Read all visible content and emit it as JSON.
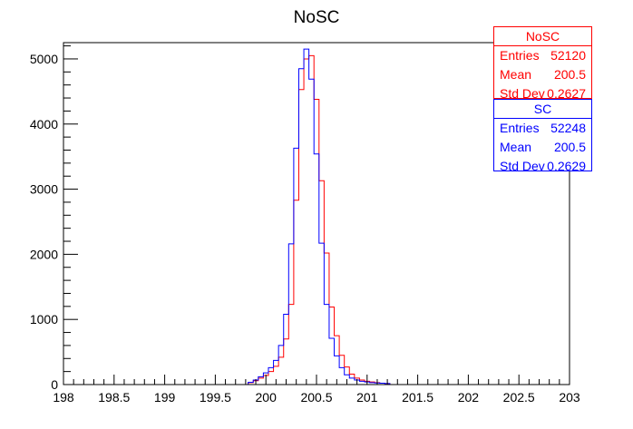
{
  "chart_data": {
    "type": "histogram",
    "title": "NoSC",
    "xlabel": "",
    "ylabel": "",
    "xlim": [
      198,
      203
    ],
    "ylim": [
      0,
      5250
    ],
    "bin_width": 0.05,
    "x_ticks": [
      "198",
      "198.5",
      "199",
      "199.5",
      "200",
      "200.5",
      "201",
      "201.5",
      "202",
      "202.5",
      "203"
    ],
    "y_ticks": [
      "0",
      "1000",
      "2000",
      "3000",
      "4000",
      "5000"
    ],
    "colors": {
      "NoSC": "#ff0000",
      "SC": "#0000ff"
    },
    "series": [
      {
        "name": "NoSC",
        "x": [
          199.85,
          199.9,
          199.95,
          200.0,
          200.05,
          200.1,
          200.15,
          200.2,
          200.25,
          200.3,
          200.35,
          200.4,
          200.45,
          200.5,
          200.55,
          200.6,
          200.65,
          200.7,
          200.75,
          200.8,
          200.85,
          200.9,
          200.95,
          201.0,
          201.05,
          201.1,
          201.15,
          201.2
        ],
        "values": [
          30,
          60,
          100,
          140,
          200,
          280,
          420,
          700,
          1230,
          2830,
          4530,
          5000,
          5050,
          4380,
          3130,
          2020,
          1190,
          750,
          450,
          270,
          160,
          100,
          70,
          50,
          40,
          30,
          20,
          15
        ]
      },
      {
        "name": "SC",
        "x": [
          199.85,
          199.9,
          199.95,
          200.0,
          200.05,
          200.1,
          200.15,
          200.2,
          200.25,
          200.3,
          200.35,
          200.4,
          200.45,
          200.5,
          200.55,
          200.6,
          200.65,
          200.7,
          200.75,
          200.8,
          200.85,
          200.9,
          200.95,
          201.0,
          201.05,
          201.1,
          201.15,
          201.2
        ],
        "values": [
          35,
          70,
          120,
          180,
          260,
          370,
          600,
          1080,
          2160,
          3630,
          4850,
          5150,
          4690,
          3540,
          2170,
          1230,
          710,
          440,
          260,
          150,
          100,
          70,
          50,
          40,
          30,
          25,
          20,
          15
        ]
      }
    ]
  },
  "stats_boxes": [
    {
      "title": "NoSC",
      "color": "#ff0000",
      "entries_label": "Entries",
      "entries": "52120",
      "mean_label": "Mean",
      "mean": "200.5",
      "std_label": "Std Dev",
      "std": "0.2627"
    },
    {
      "title": "SC",
      "color": "#0000ff",
      "entries_label": "Entries",
      "entries": "52248",
      "mean_label": "Mean",
      "mean": "200.5",
      "std_label": "Std Dev",
      "std": "0.2629"
    }
  ]
}
